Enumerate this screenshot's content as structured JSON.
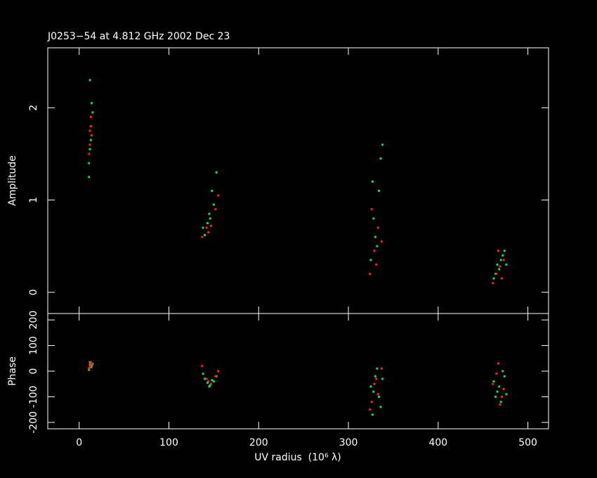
{
  "chart_data": [
    {
      "type": "scatter",
      "title": "J0253−54 at 4.812 GHz 2002 Dec 23",
      "y_label": "Amplitude",
      "xlim": [
        -35,
        523
      ],
      "ylim": [
        -0.23,
        2.65
      ],
      "xticks": [
        0,
        100,
        200,
        300,
        400,
        500
      ],
      "yticks": [
        0,
        1,
        2
      ],
      "series": [
        {
          "color": "#00e070",
          "x": [
            11,
            12,
            13,
            14,
            12,
            13,
            15,
            11,
            140,
            143,
            146,
            150,
            153,
            145,
            138,
            148,
            325,
            330,
            334,
            336,
            328,
            332,
            338,
            327,
            462,
            466,
            470,
            474,
            468,
            464,
            472,
            476
          ],
          "values": [
            1.25,
            1.55,
            1.8,
            2.05,
            2.3,
            1.65,
            1.95,
            1.4,
            0.62,
            0.75,
            0.8,
            0.95,
            1.3,
            0.85,
            0.7,
            1.1,
            0.35,
            0.6,
            1.1,
            1.45,
            0.8,
            0.5,
            1.6,
            1.2,
            0.15,
            0.3,
            0.35,
            0.45,
            0.25,
            0.2,
            0.4,
            0.3
          ]
        },
        {
          "color": "#ff2020",
          "x": [
            12,
            13,
            14,
            12,
            13,
            11,
            137,
            142,
            147,
            152,
            155,
            144,
            324,
            329,
            333,
            337,
            326,
            331,
            461,
            465,
            469,
            473,
            467,
            471
          ],
          "values": [
            1.75,
            1.8,
            1.7,
            1.6,
            1.9,
            1.5,
            0.6,
            0.7,
            0.72,
            0.9,
            1.05,
            0.65,
            0.2,
            0.45,
            0.7,
            0.55,
            0.9,
            0.3,
            0.1,
            0.2,
            0.28,
            0.35,
            0.45,
            0.15
          ]
        }
      ]
    },
    {
      "type": "scatter",
      "x_label": "UV radius  (10⁶ λ)",
      "y_label": "Phase",
      "xlim": [
        -35,
        523
      ],
      "ylim": [
        -225,
        225
      ],
      "xticks": [
        0,
        100,
        200,
        300,
        400,
        500
      ],
      "yticks": [
        -200,
        -100,
        0,
        100,
        200
      ],
      "series": [
        {
          "color": "#00e070",
          "x": [
            11,
            12,
            13,
            14,
            12,
            13,
            15,
            11,
            140,
            143,
            146,
            150,
            153,
            145,
            138,
            148,
            325,
            330,
            334,
            336,
            328,
            332,
            338,
            327,
            462,
            466,
            470,
            474,
            468,
            464,
            472,
            476
          ],
          "values": [
            10,
            25,
            30,
            20,
            35,
            15,
            28,
            5,
            -30,
            -45,
            -55,
            -40,
            -20,
            -60,
            -10,
            -35,
            -60,
            -20,
            -100,
            -140,
            -80,
            10,
            -30,
            -170,
            -40,
            -80,
            -120,
            -20,
            -60,
            -100,
            0,
            -90
          ]
        },
        {
          "color": "#ff2020",
          "x": [
            12,
            13,
            14,
            12,
            13,
            11,
            137,
            142,
            147,
            152,
            155,
            144,
            324,
            329,
            333,
            337,
            326,
            331,
            461,
            465,
            469,
            473,
            467,
            471
          ],
          "values": [
            20,
            30,
            25,
            15,
            35,
            10,
            20,
            -30,
            -50,
            -20,
            0,
            -40,
            -150,
            -50,
            -90,
            10,
            -120,
            -30,
            -50,
            -10,
            -130,
            -70,
            30,
            -100
          ]
        }
      ]
    }
  ]
}
